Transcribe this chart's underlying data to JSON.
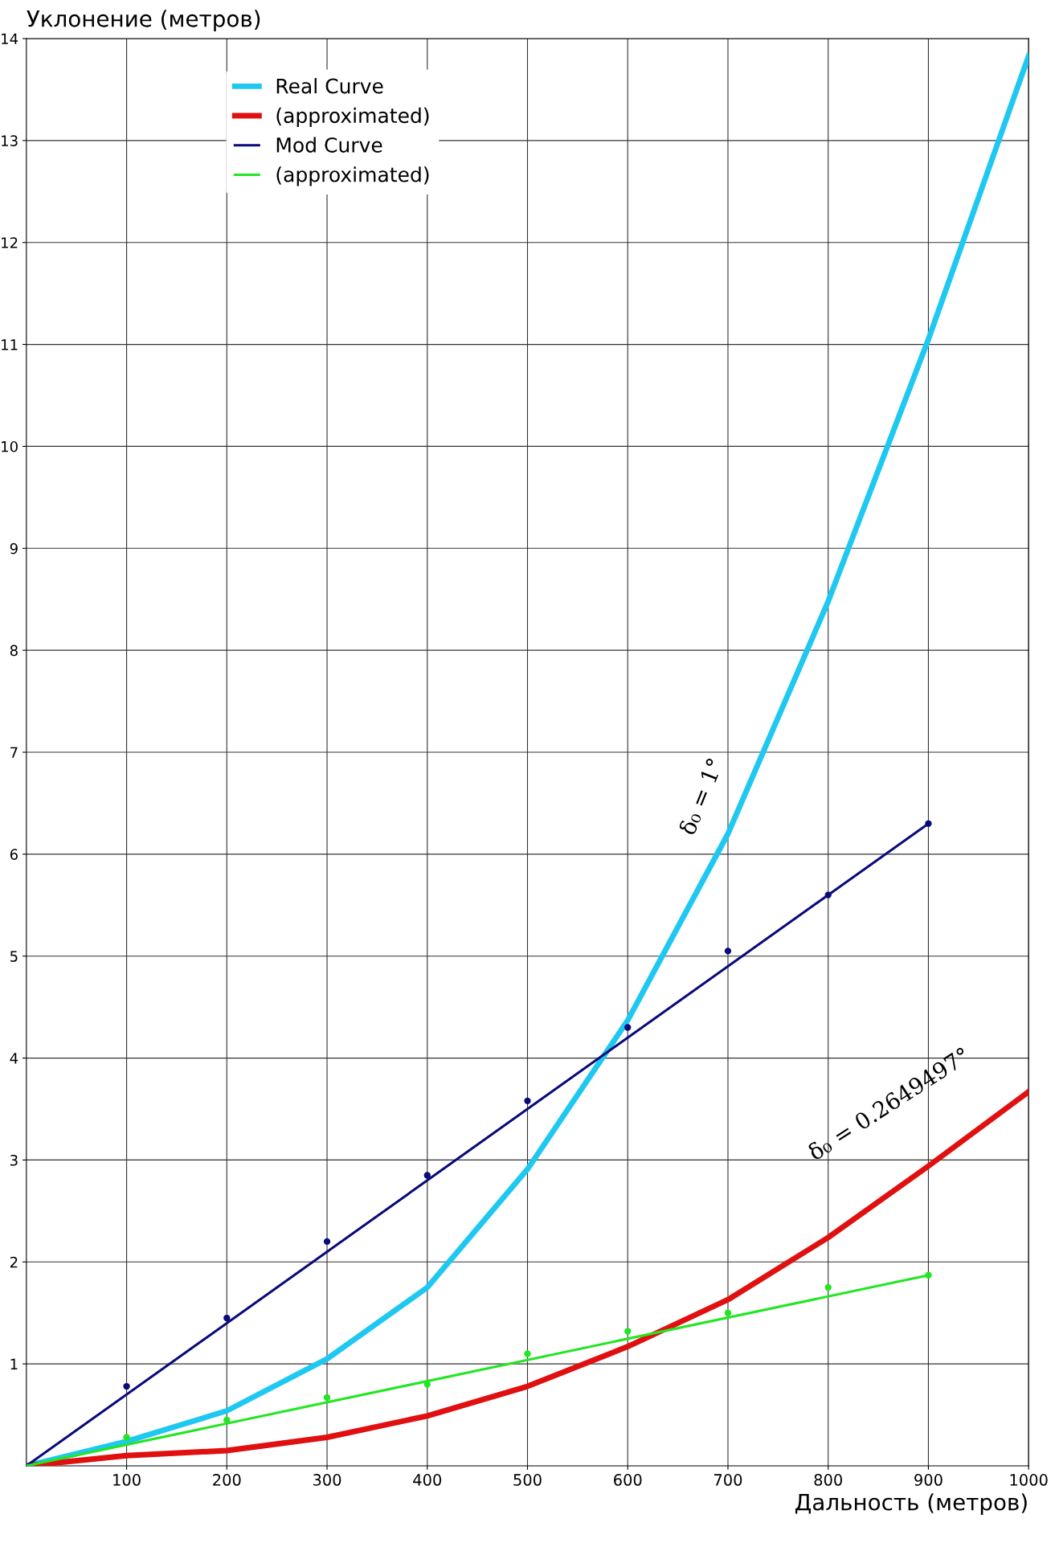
{
  "chart_data": {
    "type": "line",
    "xlabel": "Дальность (метров)",
    "ylabel": "Уклонение (метров)",
    "xlim": [
      0,
      1000
    ],
    "ylim": [
      0,
      14
    ],
    "xticks": [
      100,
      200,
      300,
      400,
      500,
      600,
      700,
      800,
      900,
      1000
    ],
    "yticks": [
      1,
      2,
      3,
      4,
      5,
      6,
      7,
      8,
      9,
      10,
      11,
      12,
      13,
      14
    ],
    "grid": true,
    "legend": "top left",
    "series": [
      {
        "name": "Real Curve",
        "color": "#1ec8f0",
        "x": [
          0,
          100,
          200,
          300,
          400,
          500,
          600,
          700,
          800,
          900,
          1000
        ],
        "values": [
          0,
          0.24,
          0.54,
          1.05,
          1.75,
          2.91,
          4.37,
          6.2,
          8.48,
          11.05,
          13.83
        ]
      },
      {
        "name": "(approximated)",
        "color": "#e01010",
        "x": [
          0,
          100,
          200,
          300,
          400,
          500,
          600,
          700,
          800,
          900,
          1000
        ],
        "values": [
          0,
          0.1,
          0.15,
          0.28,
          0.49,
          0.78,
          1.17,
          1.63,
          2.24,
          2.94,
          3.67
        ]
      },
      {
        "name": "Mod Curve",
        "color": "#0a0a7a",
        "x": [
          0,
          900
        ],
        "values": [
          0,
          6.3
        ]
      },
      {
        "name": "(approximated)",
        "color": "#22e622",
        "x": [
          0,
          900
        ],
        "values": [
          0,
          1.87
        ]
      },
      {
        "type": "scatter",
        "color": "#0a0a7a",
        "marker": "circle",
        "x": [
          100,
          200,
          300,
          400,
          500,
          600,
          700,
          800,
          900
        ],
        "values": [
          0.78,
          1.45,
          2.2,
          2.85,
          3.58,
          4.3,
          5.05,
          5.6,
          6.3
        ]
      },
      {
        "type": "scatter",
        "color": "#22e622",
        "marker": "circle",
        "x": [
          100,
          200,
          300,
          400,
          500,
          600,
          700,
          800,
          900
        ],
        "values": [
          0.28,
          0.45,
          0.67,
          0.8,
          1.1,
          1.32,
          1.5,
          1.75,
          1.87
        ]
      }
    ],
    "annotations": [
      {
        "text": "δ₀ = 1°",
        "x": 700,
        "y": 6.2
      },
      {
        "text": "δ₀ = 0.2649497°",
        "x": 900,
        "y": 2.94
      }
    ]
  }
}
